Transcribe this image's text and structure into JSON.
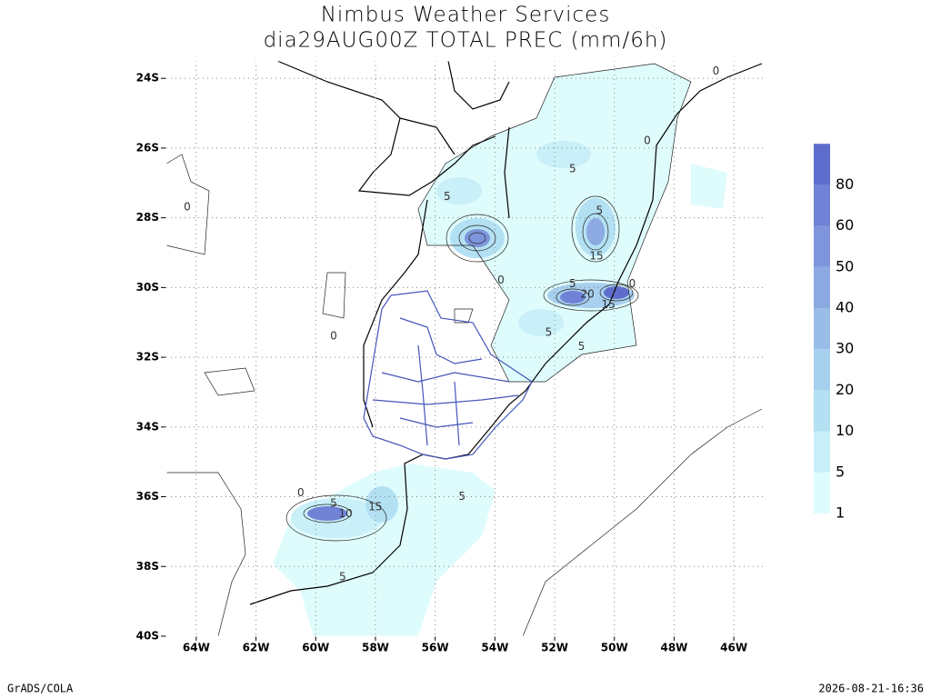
{
  "header": {
    "title": "Nimbus Weather Services",
    "subtitle": "dia29AUG00Z TOTAL PREC (mm/6h)"
  },
  "map": {
    "lon_range": [
      -65,
      -45
    ],
    "lat_range": [
      -40,
      -23.5
    ],
    "lon_ticks": [
      {
        "value": -64,
        "label": "64W"
      },
      {
        "value": -62,
        "label": "62W"
      },
      {
        "value": -60,
        "label": "60W"
      },
      {
        "value": -58,
        "label": "58W"
      },
      {
        "value": -56,
        "label": "56W"
      },
      {
        "value": -54,
        "label": "54W"
      },
      {
        "value": -52,
        "label": "52W"
      },
      {
        "value": -50,
        "label": "50W"
      },
      {
        "value": -48,
        "label": "48W"
      },
      {
        "value": -46,
        "label": "46W"
      }
    ],
    "lat_ticks": [
      {
        "value": -24,
        "label": "24S"
      },
      {
        "value": -26,
        "label": "26S"
      },
      {
        "value": -28,
        "label": "28S"
      },
      {
        "value": -30,
        "label": "30S"
      },
      {
        "value": -32,
        "label": "32S"
      },
      {
        "value": -34,
        "label": "34S"
      },
      {
        "value": -36,
        "label": "36S"
      },
      {
        "value": -38,
        "label": "38S"
      },
      {
        "value": -40,
        "label": "40S"
      }
    ],
    "grid": true,
    "contour_labels": [
      {
        "value": 5,
        "lon": -55.6,
        "lat": -27.4
      },
      {
        "value": 5,
        "lon": -51.4,
        "lat": -26.6
      },
      {
        "value": 5,
        "lon": -50.5,
        "lat": -27.8
      },
      {
        "value": 15,
        "lon": -50.6,
        "lat": -29.1
      },
      {
        "value": 5,
        "lon": -51.4,
        "lat": -29.9
      },
      {
        "value": 20,
        "lon": -50.9,
        "lat": -30.2
      },
      {
        "value": 15,
        "lon": -50.2,
        "lat": -30.5
      },
      {
        "value": 5,
        "lon": -52.2,
        "lat": -31.3
      },
      {
        "value": 5,
        "lon": -51.1,
        "lat": -31.7
      },
      {
        "value": 0,
        "lon": -49.4,
        "lat": -29.9
      },
      {
        "value": 0,
        "lon": -53.8,
        "lat": -29.8
      },
      {
        "value": 0,
        "lon": -59.4,
        "lat": -31.4
      },
      {
        "value": 5,
        "lon": -59.4,
        "lat": -36.2
      },
      {
        "value": 10,
        "lon": -59,
        "lat": -36.5
      },
      {
        "value": 15,
        "lon": -58,
        "lat": -36.3
      },
      {
        "value": 5,
        "lon": -55.1,
        "lat": -36
      },
      {
        "value": 5,
        "lon": -59.1,
        "lat": -38.3
      },
      {
        "value": 0,
        "lon": -60.5,
        "lat": -35.9
      },
      {
        "value": 0,
        "lon": -64.3,
        "lat": -27.7
      },
      {
        "value": 0,
        "lon": -48.9,
        "lat": -25.8
      },
      {
        "value": 0,
        "lon": -46.6,
        "lat": -23.8
      }
    ]
  },
  "colorbar": {
    "levels": [
      1,
      5,
      10,
      20,
      30,
      40,
      50,
      60,
      80
    ],
    "colors": [
      "#dffcfd",
      "#c9eff8",
      "#b3e1f3",
      "#a7d0ef",
      "#9abde8",
      "#8ca9e2",
      "#7e95dc",
      "#6f82d5",
      "#5e6dcd"
    ]
  },
  "footer": {
    "left": "GrADS/COLA",
    "right": "2026-08-21-16:36"
  }
}
